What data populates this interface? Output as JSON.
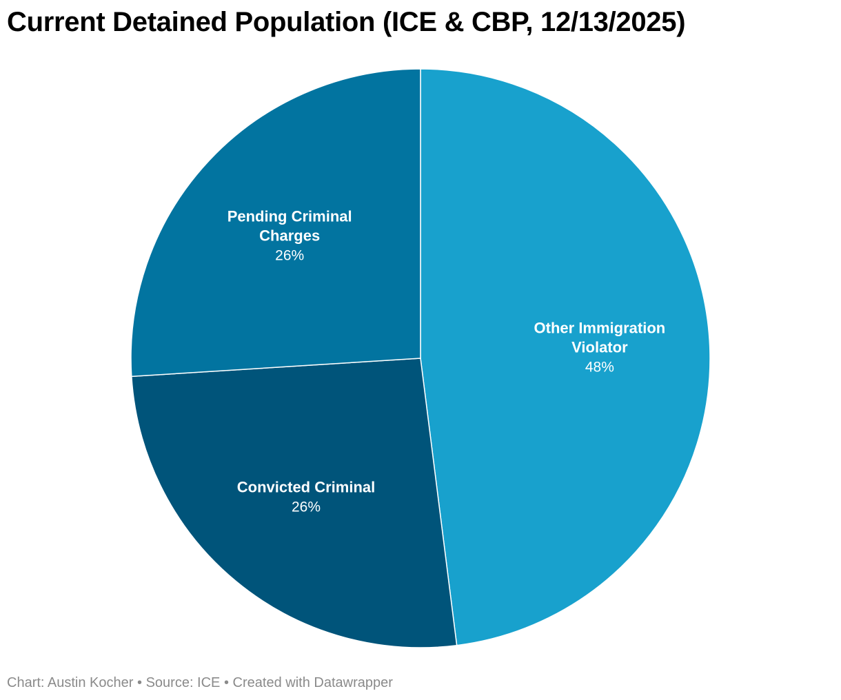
{
  "chart_data": {
    "type": "pie",
    "title": "Current Detained Population (ICE & CBP, 12/13/2025)",
    "slices": [
      {
        "name": "Other Immigration Violator",
        "label_lines": [
          "Other Immigration",
          "Violator"
        ],
        "value": 48,
        "value_label": "48%",
        "color": "#18a1cd"
      },
      {
        "name": "Convicted Criminal",
        "label_lines": [
          "Convicted Criminal"
        ],
        "value": 26,
        "value_label": "26%",
        "color": "#00547a"
      },
      {
        "name": "Pending Criminal Charges",
        "label_lines": [
          "Pending Criminal",
          "Charges"
        ],
        "value": 26,
        "value_label": "26%",
        "color": "#0274a0"
      }
    ],
    "start_angle_deg": 0,
    "direction": "clockwise"
  },
  "footer": {
    "chart_by": "Chart: Austin Kocher",
    "source": "Source: ICE",
    "created": "Created with Datawrapper",
    "separator": "•"
  }
}
